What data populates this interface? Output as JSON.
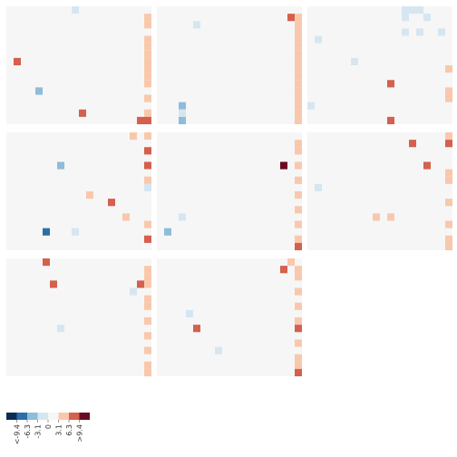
{
  "chart_data": {
    "type": "heatmap",
    "panel_count": 8,
    "panel_grid": {
      "rows": 3,
      "cols": 3
    },
    "cells_per_panel": {
      "rows": 16,
      "cols": 20
    },
    "panel_background": "#f6f6f6",
    "colorscale": {
      "colors": [
        "#0c2c54",
        "#2b6fa9",
        "#8ebcd9",
        "#d6e6f1",
        "#f6f6f6",
        "#f9c8ac",
        "#d4604d",
        "#6b0a22"
      ],
      "tick_labels": [
        "<-9.4",
        "-6.3",
        "-3.1",
        "0",
        "3.1",
        "6.3",
        ">9.4"
      ],
      "range": [
        -9.4,
        9.4
      ]
    },
    "panels": [
      {
        "cells": [
          [
            0,
            3,
            3.1
          ],
          [
            0,
            9,
            -2
          ],
          [
            1,
            19,
            4.2
          ],
          [
            1,
            4,
            3.1
          ],
          [
            2,
            19,
            4.5
          ],
          [
            2,
            16,
            3.1
          ],
          [
            3,
            17,
            3.1
          ],
          [
            3,
            19,
            3.1
          ],
          [
            4,
            19,
            4.4
          ],
          [
            4,
            3,
            3.1
          ],
          [
            5,
            19,
            4.5
          ],
          [
            6,
            19,
            4.6
          ],
          [
            6,
            10,
            3.1
          ],
          [
            7,
            1,
            6.3
          ],
          [
            7,
            19,
            4.6
          ],
          [
            8,
            19,
            4.4
          ],
          [
            9,
            15,
            3.1
          ],
          [
            9,
            19,
            4.2
          ],
          [
            10,
            19,
            4.6
          ],
          [
            11,
            4,
            -5
          ],
          [
            11,
            17,
            3.1
          ],
          [
            12,
            19,
            4.6
          ],
          [
            13,
            3,
            3.1
          ],
          [
            13,
            14,
            3.1
          ],
          [
            14,
            10,
            6.3
          ],
          [
            14,
            19,
            4.6
          ],
          [
            15,
            19,
            6.5
          ],
          [
            15,
            18,
            8.2
          ],
          [
            15,
            13,
            3.1
          ]
        ]
      },
      {
        "cells": [
          [
            0,
            3,
            3.1
          ],
          [
            0,
            10,
            3.1
          ],
          [
            1,
            18,
            6.5
          ],
          [
            1,
            19,
            4.6
          ],
          [
            2,
            19,
            4.4
          ],
          [
            2,
            5,
            -2
          ],
          [
            2,
            2,
            3.1
          ],
          [
            3,
            13,
            3.1
          ],
          [
            3,
            19,
            4.6
          ],
          [
            4,
            19,
            4.6
          ],
          [
            4,
            5,
            3.1
          ],
          [
            5,
            19,
            4.4
          ],
          [
            6,
            19,
            4.6
          ],
          [
            6,
            11,
            3.1
          ],
          [
            7,
            2,
            3.1
          ],
          [
            7,
            19,
            4.6
          ],
          [
            8,
            19,
            4.6
          ],
          [
            9,
            19,
            4.4
          ],
          [
            10,
            3,
            3.1
          ],
          [
            10,
            19,
            4.6
          ],
          [
            11,
            19,
            4.4
          ],
          [
            12,
            19,
            4.6
          ],
          [
            12,
            7,
            3.1
          ],
          [
            13,
            3,
            -5
          ],
          [
            13,
            15,
            3.1
          ],
          [
            13,
            19,
            4.4
          ],
          [
            14,
            19,
            4.5
          ],
          [
            14,
            3,
            -3.1
          ],
          [
            15,
            19,
            4.2
          ],
          [
            15,
            3,
            -4.2
          ]
        ]
      },
      {
        "cells": [
          [
            0,
            13,
            -2
          ],
          [
            0,
            14,
            -3.1
          ],
          [
            0,
            15,
            -2
          ],
          [
            1,
            13,
            -3.1
          ],
          [
            1,
            16,
            -3.1
          ],
          [
            1,
            7,
            3.1
          ],
          [
            2,
            9,
            3.1
          ],
          [
            3,
            13,
            -3.1
          ],
          [
            3,
            15,
            -3.1
          ],
          [
            3,
            18,
            -3.1
          ],
          [
            4,
            1,
            -2
          ],
          [
            4,
            10,
            3.1
          ],
          [
            5,
            18,
            3.1
          ],
          [
            6,
            19,
            3.1
          ],
          [
            7,
            6,
            -2
          ],
          [
            8,
            19,
            4.2
          ],
          [
            9,
            2,
            3.1
          ],
          [
            9,
            15,
            3.1
          ],
          [
            10,
            11,
            6.3
          ],
          [
            11,
            19,
            4.4
          ],
          [
            12,
            19,
            4.6
          ],
          [
            13,
            0,
            -2
          ],
          [
            13,
            2,
            3.1
          ],
          [
            14,
            5,
            3.1
          ],
          [
            14,
            14,
            3.1
          ],
          [
            15,
            11,
            6.3
          ],
          [
            15,
            12,
            3.1
          ]
        ]
      },
      {
        "cells": [
          [
            0,
            17,
            4.4
          ],
          [
            0,
            19,
            4.2
          ],
          [
            1,
            19,
            3.1
          ],
          [
            2,
            19,
            6.5
          ],
          [
            3,
            8,
            3.1
          ],
          [
            4,
            7,
            -4.2
          ],
          [
            4,
            19,
            6.5
          ],
          [
            5,
            19,
            3.1
          ],
          [
            6,
            19,
            4.4
          ],
          [
            7,
            19,
            -3.1
          ],
          [
            8,
            11,
            4.4
          ],
          [
            9,
            14,
            6.3
          ],
          [
            10,
            5,
            3.1
          ],
          [
            11,
            16,
            4.4
          ],
          [
            12,
            19,
            4.6
          ],
          [
            13,
            5,
            -6.3
          ],
          [
            13,
            9,
            -2
          ],
          [
            14,
            19,
            6.5
          ],
          [
            15,
            1,
            3.1
          ],
          [
            15,
            12,
            3.1
          ]
        ]
      },
      {
        "cells": [
          [
            0,
            4,
            3.1
          ],
          [
            1,
            19,
            4.4
          ],
          [
            2,
            19,
            4.6
          ],
          [
            3,
            14,
            3.1
          ],
          [
            4,
            17,
            10
          ],
          [
            4,
            19,
            4.6
          ],
          [
            5,
            11,
            3.1
          ],
          [
            6,
            19,
            4.6
          ],
          [
            7,
            2,
            3.1
          ],
          [
            8,
            19,
            4.6
          ],
          [
            9,
            13,
            3.1
          ],
          [
            10,
            19,
            4.4
          ],
          [
            11,
            3,
            -3.1
          ],
          [
            12,
            9,
            3.1
          ],
          [
            12,
            19,
            4.4
          ],
          [
            13,
            1,
            -4.2
          ],
          [
            14,
            19,
            4.6
          ],
          [
            15,
            19,
            6.5
          ]
        ]
      },
      {
        "cells": [
          [
            0,
            19,
            4.6
          ],
          [
            1,
            14,
            6.3
          ],
          [
            1,
            19,
            6.5
          ],
          [
            1,
            18,
            3.1
          ],
          [
            2,
            4,
            3.1
          ],
          [
            3,
            10,
            3.1
          ],
          [
            4,
            5,
            3.1
          ],
          [
            4,
            16,
            6.3
          ],
          [
            5,
            19,
            4.4
          ],
          [
            6,
            19,
            4.6
          ],
          [
            7,
            1,
            -2
          ],
          [
            8,
            9,
            3.1
          ],
          [
            9,
            19,
            4.6
          ],
          [
            10,
            13,
            3.1
          ],
          [
            11,
            9,
            4.4
          ],
          [
            11,
            11,
            4.4
          ],
          [
            12,
            19,
            4.4
          ],
          [
            13,
            2,
            3.1
          ],
          [
            14,
            19,
            4.6
          ],
          [
            15,
            19,
            4.6
          ]
        ]
      },
      {
        "cells": [
          [
            0,
            5,
            6.3
          ],
          [
            1,
            19,
            4.4
          ],
          [
            2,
            19,
            4.6
          ],
          [
            3,
            6,
            8.5
          ],
          [
            3,
            19,
            4.6
          ],
          [
            3,
            18,
            6.5
          ],
          [
            4,
            17,
            -3.1
          ],
          [
            5,
            19,
            4.4
          ],
          [
            6,
            19,
            4.6
          ],
          [
            7,
            3,
            3.1
          ],
          [
            8,
            19,
            4.4
          ],
          [
            9,
            7,
            -3.1
          ],
          [
            10,
            19,
            4.6
          ],
          [
            11,
            2,
            3.1
          ],
          [
            12,
            19,
            4.4
          ],
          [
            13,
            4,
            3.1
          ],
          [
            14,
            19,
            4.6
          ],
          [
            15,
            0,
            3.1
          ],
          [
            15,
            19,
            4.6
          ]
        ]
      },
      {
        "cells": [
          [
            0,
            18,
            4.4
          ],
          [
            1,
            17,
            6.5
          ],
          [
            1,
            19,
            4.4
          ],
          [
            2,
            19,
            4.6
          ],
          [
            3,
            16,
            3.1
          ],
          [
            4,
            19,
            4.6
          ],
          [
            5,
            11,
            3.1
          ],
          [
            6,
            19,
            4.4
          ],
          [
            7,
            4,
            -3.1
          ],
          [
            8,
            19,
            4.6
          ],
          [
            9,
            5,
            6.3
          ],
          [
            9,
            19,
            8.2
          ],
          [
            10,
            8,
            3.1
          ],
          [
            11,
            19,
            4.6
          ],
          [
            12,
            8,
            -3.1
          ],
          [
            13,
            19,
            4.6
          ],
          [
            14,
            19,
            4.4
          ],
          [
            15,
            19,
            6.5
          ]
        ]
      }
    ]
  }
}
